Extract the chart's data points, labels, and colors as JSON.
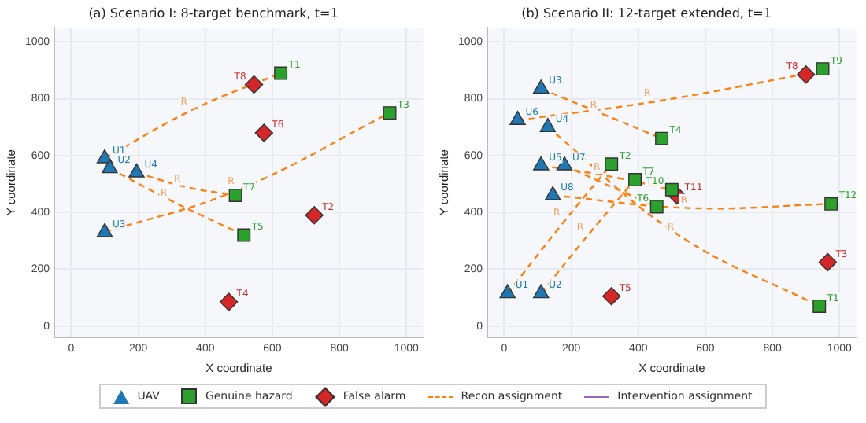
{
  "chart_data": [
    {
      "type": "scatter",
      "title": "(a) Scenario I: 8-target benchmark, t=1",
      "xlabel": "X coordinate",
      "ylabel": "Y coordinate",
      "xlim": [
        -50,
        1050
      ],
      "ylim": [
        -40,
        1050
      ],
      "xticks": [
        0,
        200,
        400,
        600,
        800,
        1000
      ],
      "yticks": [
        0,
        200,
        400,
        600,
        800,
        1000
      ],
      "grid": true,
      "legend": "bottom",
      "series": [
        {
          "name": "Recon assignment",
          "type": "line",
          "color": "#ff7f0e",
          "line_style": "dashed",
          "x": [
            100,
            360,
            625
          ],
          "values": [
            590,
            760,
            890
          ]
        },
        {
          "type": "line",
          "color": "#ff7f0e",
          "line_style": "dashed",
          "x": [
            100,
            500,
            950
          ],
          "values": [
            330,
            480,
            750
          ]
        },
        {
          "type": "line",
          "color": "#ff7f0e",
          "line_style": "dashed",
          "x": [
            115,
            300,
            515
          ],
          "values": [
            555,
            440,
            320
          ]
        },
        {
          "type": "line",
          "color": "#ff7f0e",
          "line_style": "dashed",
          "x": [
            195,
            340,
            490
          ],
          "values": [
            540,
            490,
            460
          ]
        },
        {
          "name": "Intervention assignment",
          "type": "line",
          "color": "#9467bd",
          "line_style": "solid"
        },
        {
          "name": "UAV",
          "type": "scatter",
          "marker": "triangle",
          "color": "#1f77b4",
          "x": [
            100,
            115,
            100,
            195
          ],
          "values": [
            590,
            555,
            330,
            540
          ],
          "value_labels": [
            "U1",
            "U2",
            "U3",
            "U4"
          ]
        },
        {
          "name": "Genuine hazard",
          "type": "scatter",
          "marker": "square",
          "color": "#2ca02c",
          "x": [
            625,
            950,
            515,
            490
          ],
          "values": [
            890,
            750,
            320,
            460
          ],
          "value_labels": [
            "T1",
            "T3",
            "T5",
            "T7"
          ]
        },
        {
          "name": "False alarm",
          "type": "scatter",
          "marker": "diamond",
          "color": "#d62728",
          "x": [
            725,
            470,
            575,
            545
          ],
          "values": [
            390,
            85,
            680,
            850
          ],
          "value_labels": [
            "T2",
            "T4",
            "T6",
            "T8"
          ]
        }
      ],
      "annotations": [
        {
          "text": "R",
          "x": 360,
          "y": 760
        },
        {
          "text": "R",
          "x": 340,
          "y": 490
        },
        {
          "text": "R",
          "x": 300,
          "y": 440
        },
        {
          "text": "R",
          "x": 500,
          "y": 480
        }
      ]
    },
    {
      "type": "scatter",
      "title": "(b) Scenario II: 12-target extended, t=1",
      "xlabel": "X coordinate",
      "ylabel": "Y coordinate",
      "xlim": [
        -50,
        1050
      ],
      "ylim": [
        -40,
        1050
      ],
      "xticks": [
        0,
        200,
        400,
        600,
        800,
        1000
      ],
      "yticks": [
        0,
        200,
        400,
        600,
        800,
        1000
      ],
      "grid": true,
      "series": [
        {
          "type": "line",
          "color": "#ff7f0e",
          "line_style": "dashed",
          "x": [
            110,
            290,
            470
          ],
          "values": [
            835,
            748,
            660
          ]
        },
        {
          "type": "line",
          "color": "#ff7f0e",
          "line_style": "dashed",
          "x": [
            40,
            450,
            890
          ],
          "values": [
            725,
            790,
            885
          ]
        },
        {
          "type": "line",
          "color": "#ff7f0e",
          "line_style": "dashed",
          "x": [
            130,
            520,
            940
          ],
          "values": [
            700,
            320,
            70
          ]
        },
        {
          "type": "line",
          "color": "#ff7f0e",
          "line_style": "dashed",
          "x": [
            110,
            300,
            500
          ],
          "values": [
            565,
            530,
            480
          ]
        },
        {
          "type": "line",
          "color": "#ff7f0e",
          "line_style": "dashed",
          "x": [
            180,
            320,
            455
          ],
          "values": [
            565,
            490,
            420
          ]
        },
        {
          "type": "line",
          "color": "#ff7f0e",
          "line_style": "dashed",
          "x": [
            145,
            560,
            975
          ],
          "values": [
            460,
            415,
            430
          ]
        },
        {
          "type": "line",
          "color": "#ff7f0e",
          "line_style": "dashed",
          "x": [
            10,
            180,
            320
          ],
          "values": [
            115,
            370,
            570
          ]
        },
        {
          "type": "line",
          "color": "#ff7f0e",
          "line_style": "dashed",
          "x": [
            110,
            250,
            390
          ],
          "values": [
            115,
            320,
            515
          ]
        },
        {
          "type": "scatter",
          "marker": "triangle",
          "color": "#1f77b4",
          "x": [
            10,
            110,
            110,
            130,
            110,
            40,
            180,
            145
          ],
          "values": [
            115,
            115,
            835,
            700,
            565,
            725,
            565,
            460
          ],
          "value_labels": [
            "U1",
            "U2",
            "U3",
            "U4",
            "U5",
            "U6",
            "U7",
            "U8"
          ]
        },
        {
          "type": "scatter",
          "marker": "square",
          "color": "#2ca02c",
          "x": [
            940,
            320,
            470,
            455,
            390,
            950,
            500,
            975
          ],
          "values": [
            70,
            570,
            660,
            420,
            515,
            905,
            480,
            430
          ],
          "value_labels": [
            "T1",
            "T2",
            "T4",
            "T6",
            "T7",
            "T9",
            "T10",
            "T12"
          ]
        },
        {
          "type": "scatter",
          "marker": "diamond",
          "color": "#d62728",
          "x": [
            965,
            320,
            900,
            515
          ],
          "values": [
            225,
            105,
            885,
            460
          ],
          "value_labels": [
            "T3",
            "T5",
            "T8",
            "T11"
          ]
        }
      ],
      "annotations": [
        {
          "text": "R",
          "x": 290,
          "y": 748
        },
        {
          "text": "R",
          "x": 450,
          "y": 790
        },
        {
          "text": "R",
          "x": 300,
          "y": 530
        },
        {
          "text": "R",
          "x": 560,
          "y": 415
        },
        {
          "text": "R",
          "x": 520,
          "y": 320
        },
        {
          "text": "R",
          "x": 180,
          "y": 370
        },
        {
          "text": "R",
          "x": 250,
          "y": 320
        }
      ]
    }
  ]
}
